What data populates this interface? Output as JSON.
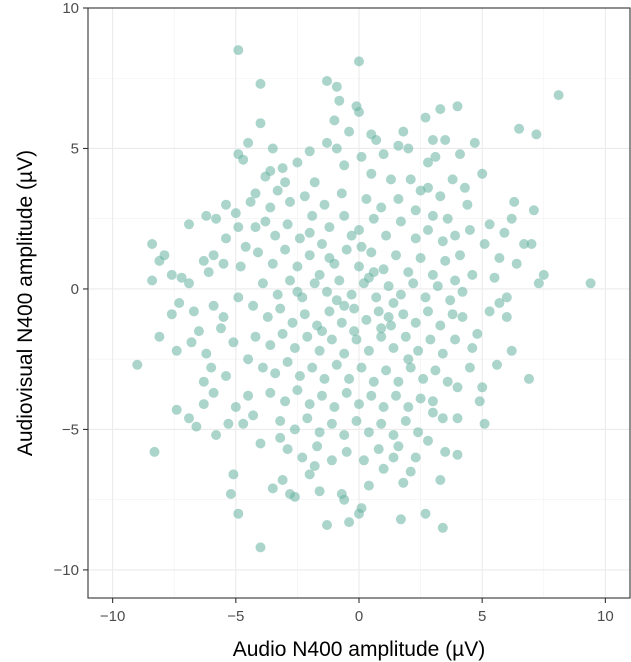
{
  "chart_data": {
    "type": "scatter",
    "title": "",
    "xlabel": "Audio N400 amplitude (µV)",
    "ylabel": "Audiovisual N400 amplitude (µV)",
    "xlim": [
      -11.0,
      11.0
    ],
    "ylim": [
      -11.0,
      10.0
    ],
    "xticks": [
      -10,
      -5,
      0,
      5,
      10
    ],
    "yticks": [
      -10,
      -5,
      0,
      5,
      10
    ],
    "x_tick_labels": [
      "−10",
      "−5",
      "0",
      "5",
      "10"
    ],
    "y_tick_labels": [
      "−10",
      "−5",
      "0",
      "5",
      "10"
    ],
    "grid": true,
    "point_color": "#66b2a0",
    "point_opacity": 0.55,
    "points": [
      [
        -4.9,
        8.5
      ],
      [
        0.0,
        8.1
      ],
      [
        -4.0,
        7.3
      ],
      [
        -1.3,
        7.4
      ],
      [
        -0.9,
        7.2
      ],
      [
        8.1,
        6.9
      ],
      [
        -0.8,
        6.7
      ],
      [
        3.3,
        6.4
      ],
      [
        4.0,
        6.5
      ],
      [
        -0.1,
        6.5
      ],
      [
        0.0,
        6.3
      ],
      [
        -4.0,
        5.9
      ],
      [
        2.7,
        6.1
      ],
      [
        6.5,
        5.7
      ],
      [
        7.2,
        5.5
      ],
      [
        1.6,
        5.1
      ],
      [
        3.0,
        5.3
      ],
      [
        3.5,
        5.3
      ],
      [
        4.7,
        5.2
      ],
      [
        -4.5,
        5.2
      ],
      [
        -4.9,
        4.8
      ],
      [
        -4.7,
        4.6
      ],
      [
        -3.6,
        4.2
      ],
      [
        4.1,
        4.8
      ],
      [
        2.8,
        4.5
      ],
      [
        5.0,
        4.1
      ],
      [
        -2.0,
        4.9
      ],
      [
        -1.3,
        5.2
      ],
      [
        0.7,
        5.3
      ],
      [
        1.0,
        4.8
      ],
      [
        -4.2,
        3.4
      ],
      [
        -4.4,
        3.1
      ],
      [
        -3.6,
        2.9
      ],
      [
        -5.0,
        2.7
      ],
      [
        -5.8,
        2.5
      ],
      [
        -6.9,
        2.3
      ],
      [
        -6.2,
        2.6
      ],
      [
        6.3,
        3.1
      ],
      [
        7.1,
        2.8
      ],
      [
        6.2,
        2.5
      ],
      [
        5.3,
        2.3
      ],
      [
        4.5,
        2.1
      ],
      [
        -8.4,
        1.6
      ],
      [
        -7.9,
        1.2
      ],
      [
        -8.1,
        1.0
      ],
      [
        -7.6,
        0.5
      ],
      [
        -7.2,
        0.4
      ],
      [
        -8.4,
        0.3
      ],
      [
        -6.9,
        0.2
      ],
      [
        6.7,
        1.6
      ],
      [
        7.0,
        1.6
      ],
      [
        7.5,
        0.5
      ],
      [
        7.3,
        0.2
      ],
      [
        9.4,
        0.2
      ],
      [
        -6.3,
        1.0
      ],
      [
        -5.5,
        0.9
      ],
      [
        5.7,
        1.1
      ],
      [
        5.5,
        0.4
      ],
      [
        -7.3,
        -0.5
      ],
      [
        -7.6,
        -0.9
      ],
      [
        -8.1,
        -1.7
      ],
      [
        -7.4,
        -2.2
      ],
      [
        -9.0,
        -2.7
      ],
      [
        -6.8,
        -1.9
      ],
      [
        -6.2,
        -2.3
      ],
      [
        -5.4,
        -3.1
      ],
      [
        -6.3,
        -3.3
      ],
      [
        -5.9,
        -3.7
      ],
      [
        -6.3,
        -4.1
      ],
      [
        -7.4,
        -4.3
      ],
      [
        -6.9,
        -4.6
      ],
      [
        -6.6,
        -4.9
      ],
      [
        -5.8,
        -5.2
      ],
      [
        -5.3,
        -4.8
      ],
      [
        -4.7,
        -4.8
      ],
      [
        -8.3,
        -5.8
      ],
      [
        6.9,
        -3.2
      ],
      [
        5.0,
        -3.5
      ],
      [
        5.1,
        -4.8
      ],
      [
        4.0,
        -3.5
      ],
      [
        3.0,
        -4.4
      ],
      [
        3.4,
        -4.6
      ],
      [
        2.8,
        -5.4
      ],
      [
        1.6,
        -5.6
      ],
      [
        2.3,
        -6.0
      ],
      [
        -5.1,
        -6.6
      ],
      [
        -5.2,
        -7.3
      ],
      [
        -4.9,
        -8.0
      ],
      [
        -3.1,
        -6.8
      ],
      [
        -2.8,
        -7.3
      ],
      [
        -3.5,
        -7.1
      ],
      [
        -1.6,
        -7.2
      ],
      [
        -2.6,
        -7.4
      ],
      [
        -0.7,
        -7.3
      ],
      [
        0.4,
        -7.0
      ],
      [
        -0.6,
        -7.5
      ],
      [
        3.3,
        -6.8
      ],
      [
        1.8,
        -6.9
      ],
      [
        -1.3,
        -8.4
      ],
      [
        -0.4,
        -8.3
      ],
      [
        0.0,
        -8.0
      ],
      [
        1.7,
        -8.2
      ],
      [
        2.7,
        -8.0
      ],
      [
        3.4,
        -8.5
      ],
      [
        -4.0,
        -9.2
      ],
      [
        0.1,
        -7.8
      ],
      [
        4.0,
        -5.9
      ],
      [
        5.6,
        -2.7
      ],
      [
        4.6,
        -2.1
      ],
      [
        4.8,
        -1.6
      ],
      [
        5.3,
        -0.8
      ],
      [
        5.7,
        -0.5
      ],
      [
        6.0,
        -0.3
      ],
      [
        4.2,
        -1.0
      ],
      [
        -5.1,
        -1.9
      ],
      [
        -5.5,
        -1.0
      ],
      [
        -5.9,
        -0.6
      ],
      [
        -4.5,
        -3.8
      ],
      [
        -4.3,
        -4.5
      ],
      [
        -4.8,
        0.8
      ],
      [
        -4.6,
        1.5
      ],
      [
        -4.2,
        2.2
      ],
      [
        4.3,
        3.6
      ],
      [
        3.8,
        3.9
      ],
      [
        -3.1,
        4.3
      ],
      [
        3.1,
        4.7
      ],
      [
        -2.5,
        4.5
      ],
      [
        -1.8,
        3.8
      ],
      [
        -0.6,
        4.4
      ],
      [
        0.5,
        4.1
      ],
      [
        1.3,
        3.9
      ],
      [
        2.1,
        3.9
      ],
      [
        2.8,
        3.6
      ],
      [
        3.3,
        3.3
      ],
      [
        -3.3,
        3.5
      ],
      [
        -2.8,
        3.1
      ],
      [
        -2.2,
        3.3
      ],
      [
        -1.4,
        3.0
      ],
      [
        -0.7,
        3.4
      ],
      [
        0.3,
        3.2
      ],
      [
        0.9,
        2.9
      ],
      [
        1.6,
        3.2
      ],
      [
        2.3,
        2.8
      ],
      [
        3.0,
        2.6
      ],
      [
        3.6,
        2.5
      ],
      [
        -3.8,
        2.4
      ],
      [
        -3.4,
        1.9
      ],
      [
        -2.9,
        2.3
      ],
      [
        -2.4,
        1.8
      ],
      [
        -1.9,
        2.6
      ],
      [
        -1.2,
        2.2
      ],
      [
        -0.6,
        2.6
      ],
      [
        0.0,
        2.1
      ],
      [
        0.6,
        2.5
      ],
      [
        1.1,
        1.9
      ],
      [
        1.7,
        2.4
      ],
      [
        2.3,
        1.8
      ],
      [
        2.8,
        2.1
      ],
      [
        3.4,
        1.7
      ],
      [
        3.9,
        1.9
      ],
      [
        4.1,
        1.2
      ],
      [
        -4.1,
        1.3
      ],
      [
        -3.5,
        0.9
      ],
      [
        -3.0,
        1.4
      ],
      [
        -2.5,
        0.8
      ],
      [
        -2.0,
        1.2
      ],
      [
        -1.5,
        1.6
      ],
      [
        -1.0,
        0.9
      ],
      [
        -0.5,
        1.4
      ],
      [
        0.0,
        0.8
      ],
      [
        0.5,
        1.3
      ],
      [
        1.0,
        0.7
      ],
      [
        1.5,
        1.2
      ],
      [
        2.0,
        0.6
      ],
      [
        2.5,
        1.1
      ],
      [
        3.0,
        0.5
      ],
      [
        3.5,
        1.0
      ],
      [
        3.9,
        0.3
      ],
      [
        -3.9,
        0.2
      ],
      [
        -3.3,
        -0.2
      ],
      [
        -2.8,
        0.3
      ],
      [
        -2.3,
        -0.3
      ],
      [
        -1.8,
        0.2
      ],
      [
        -1.3,
        -0.1
      ],
      [
        -0.8,
        0.3
      ],
      [
        -0.3,
        -0.2
      ],
      [
        0.2,
        0.2
      ],
      [
        0.7,
        -0.3
      ],
      [
        1.2,
        0.1
      ],
      [
        1.7,
        -0.2
      ],
      [
        2.2,
        0.2
      ],
      [
        2.7,
        -0.3
      ],
      [
        3.2,
        0.1
      ],
      [
        3.7,
        -0.4
      ],
      [
        4.2,
        -0.1
      ],
      [
        -4.3,
        -0.6
      ],
      [
        -3.7,
        -1.0
      ],
      [
        -3.2,
        -0.7
      ],
      [
        -2.7,
        -1.2
      ],
      [
        -2.2,
        -0.9
      ],
      [
        -1.7,
        -1.3
      ],
      [
        -1.2,
        -0.8
      ],
      [
        -0.7,
        -1.2
      ],
      [
        -0.2,
        -0.7
      ],
      [
        0.3,
        -1.1
      ],
      [
        0.8,
        -0.8
      ],
      [
        1.3,
        -1.3
      ],
      [
        1.8,
        -0.9
      ],
      [
        2.3,
        -1.2
      ],
      [
        2.8,
        -0.8
      ],
      [
        3.3,
        -1.3
      ],
      [
        3.8,
        -0.9
      ],
      [
        -4.2,
        -1.7
      ],
      [
        -3.6,
        -2.0
      ],
      [
        -3.1,
        -1.6
      ],
      [
        -2.6,
        -2.1
      ],
      [
        -2.1,
        -1.7
      ],
      [
        -1.6,
        -2.2
      ],
      [
        -1.1,
        -1.8
      ],
      [
        -0.6,
        -2.3
      ],
      [
        -0.1,
        -1.8
      ],
      [
        0.4,
        -2.2
      ],
      [
        0.9,
        -1.7
      ],
      [
        1.4,
        -2.1
      ],
      [
        1.9,
        -1.7
      ],
      [
        2.4,
        -2.2
      ],
      [
        2.9,
        -1.8
      ],
      [
        3.4,
        -2.3
      ],
      [
        3.9,
        -1.8
      ],
      [
        -3.9,
        -2.8
      ],
      [
        -3.4,
        -3.0
      ],
      [
        -2.9,
        -2.6
      ],
      [
        -2.4,
        -3.1
      ],
      [
        -1.9,
        -2.8
      ],
      [
        -1.4,
        -3.2
      ],
      [
        -0.9,
        -2.7
      ],
      [
        -0.4,
        -3.2
      ],
      [
        0.1,
        -2.8
      ],
      [
        0.6,
        -3.3
      ],
      [
        1.1,
        -2.9
      ],
      [
        1.6,
        -3.3
      ],
      [
        2.1,
        -2.8
      ],
      [
        2.6,
        -3.2
      ],
      [
        3.1,
        -2.9
      ],
      [
        3.6,
        -3.3
      ],
      [
        -3.6,
        -3.7
      ],
      [
        -3.0,
        -4.0
      ],
      [
        -2.5,
        -3.6
      ],
      [
        -2.0,
        -4.1
      ],
      [
        -1.5,
        -3.8
      ],
      [
        -1.0,
        -4.2
      ],
      [
        -0.5,
        -3.7
      ],
      [
        0.0,
        -4.1
      ],
      [
        0.5,
        -3.8
      ],
      [
        1.0,
        -4.2
      ],
      [
        1.5,
        -3.8
      ],
      [
        2.0,
        -4.2
      ],
      [
        2.5,
        -3.9
      ],
      [
        3.0,
        -4.0
      ],
      [
        -3.2,
        -4.7
      ],
      [
        -2.6,
        -5.0
      ],
      [
        -2.1,
        -4.6
      ],
      [
        -1.6,
        -5.1
      ],
      [
        -1.1,
        -4.8
      ],
      [
        -0.6,
        -5.2
      ],
      [
        -0.1,
        -4.7
      ],
      [
        0.4,
        -5.1
      ],
      [
        0.9,
        -4.8
      ],
      [
        1.4,
        -5.2
      ],
      [
        1.9,
        -4.7
      ],
      [
        2.4,
        -5.1
      ],
      [
        -2.9,
        -5.7
      ],
      [
        -2.3,
        -6.0
      ],
      [
        -1.7,
        -5.6
      ],
      [
        -1.1,
        -6.1
      ],
      [
        -0.5,
        -5.8
      ],
      [
        0.2,
        -6.1
      ],
      [
        0.8,
        -5.7
      ],
      [
        1.4,
        -6.0
      ],
      [
        -2.5,
        -0.1
      ],
      [
        -1.6,
        0.5
      ],
      [
        -0.9,
        -0.4
      ],
      [
        0.4,
        0.4
      ],
      [
        1.4,
        -0.5
      ],
      [
        -0.3,
        1.9
      ],
      [
        -1.5,
        -1.5
      ],
      [
        0.9,
        -1.4
      ],
      [
        -2.0,
        2.0
      ],
      [
        2.0,
        -2.5
      ],
      [
        -0.6,
        -0.6
      ],
      [
        0.6,
        0.6
      ],
      [
        -1.2,
        1.1
      ],
      [
        1.2,
        -1.0
      ],
      [
        -0.2,
        -1.5
      ],
      [
        0.1,
        1.5
      ],
      [
        -3.0,
        3.8
      ],
      [
        2.5,
        3.5
      ],
      [
        -4.5,
        -2.5
      ],
      [
        4.5,
        -2.8
      ],
      [
        -5.4,
        1.8
      ],
      [
        5.1,
        1.6
      ],
      [
        -5.6,
        -1.4
      ],
      [
        -4.9,
        -0.3
      ],
      [
        4.6,
        0.5
      ],
      [
        -3.5,
        5.0
      ],
      [
        2.0,
        5.0
      ],
      [
        -0.4,
        5.6
      ],
      [
        0.5,
        5.5
      ],
      [
        -5.9,
        1.2
      ],
      [
        -6.5,
        -1.5
      ],
      [
        -6.0,
        -2.8
      ],
      [
        -6.7,
        -0.8
      ],
      [
        -5.4,
        3.0
      ],
      [
        5.9,
        2.0
      ],
      [
        6.0,
        -1.0
      ],
      [
        4.9,
        -4.0
      ],
      [
        -4.0,
        -5.5
      ],
      [
        3.5,
        -5.8
      ],
      [
        -2.0,
        -6.6
      ],
      [
        1.0,
        -6.4
      ],
      [
        -1.0,
        6.0
      ],
      [
        1.8,
        5.6
      ],
      [
        -3.8,
        4.0
      ],
      [
        4.4,
        3.0
      ],
      [
        -4.9,
        2.2
      ],
      [
        -5.0,
        -4.2
      ],
      [
        4.0,
        -4.6
      ],
      [
        -1.8,
        -6.3
      ],
      [
        2.1,
        -6.5
      ],
      [
        6.4,
        0.9
      ],
      [
        -6.1,
        0.6
      ],
      [
        6.2,
        -2.2
      ],
      [
        -3.2,
        -5.3
      ],
      [
        -0.9,
        5.0
      ],
      [
        0.1,
        4.7
      ]
    ]
  }
}
